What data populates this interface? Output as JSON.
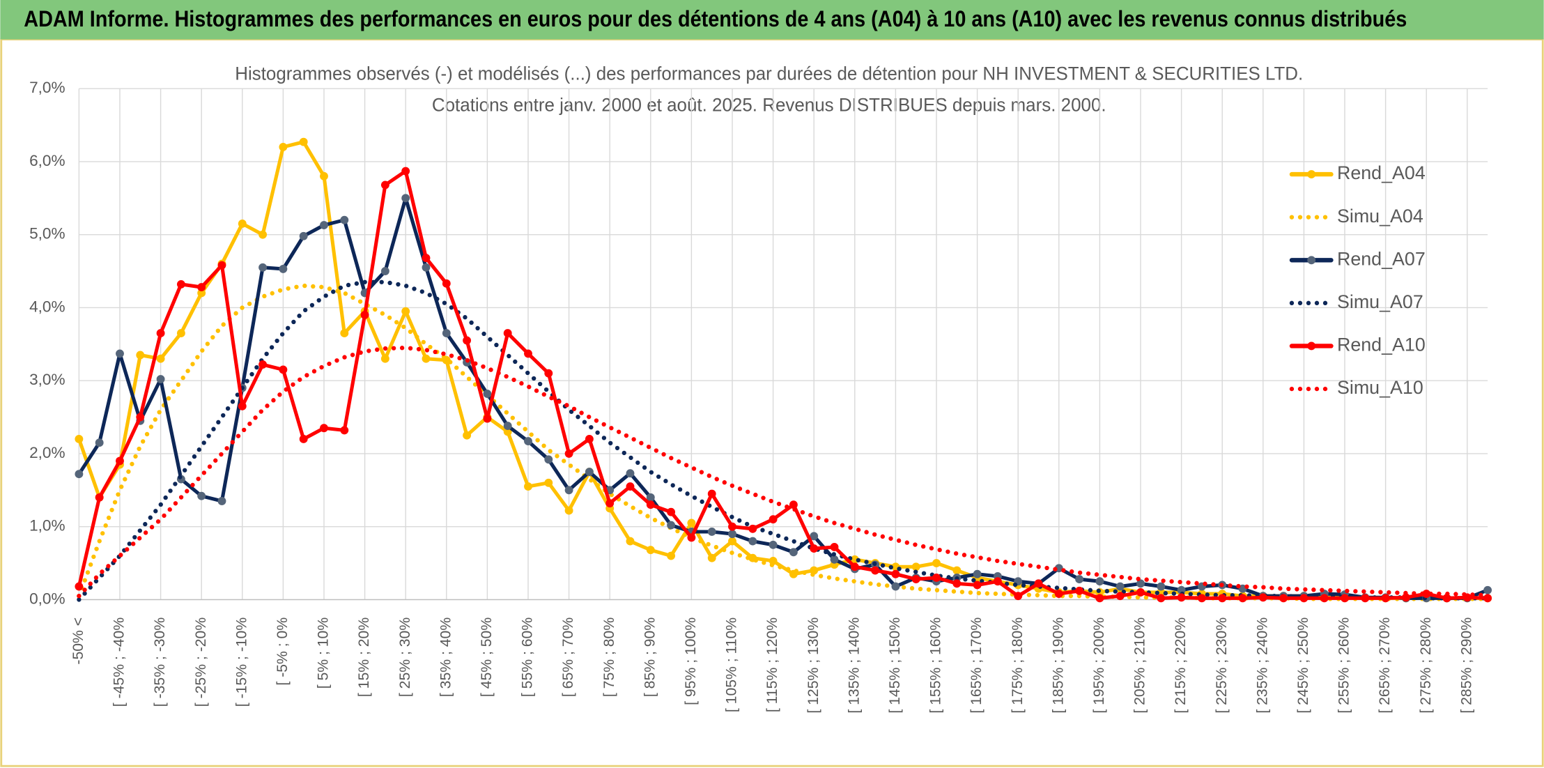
{
  "header": {
    "title": "ADAM Informe. Histogrammes des performances en euros pour des détentions de 4 ans (A04) à 10 ans (A10) avec les revenus connus distribués"
  },
  "chart_data": {
    "type": "line",
    "title": "Histogrammes observés (-) et modélisés (...) des performances par durées de détention pour NH INVESTMENT & SECURITIES LTD.",
    "subtitle": "Cotations entre janv. 2000 et août. 2025. Revenus DISTRIBUES depuis mars. 2000.",
    "categories": [
      "-50% <",
      null,
      "[ -45% ; -40%",
      null,
      "[ -35% ; -30%",
      null,
      "[ -25% ; -20%",
      null,
      "[ -15% ; -10%",
      null,
      "[ -5% ; 0%",
      null,
      "[ 5% ; 10%",
      null,
      "[ 15% ; 20%",
      null,
      "[ 25% ; 30%",
      null,
      "[ 35% ; 40%",
      null,
      "[ 45% ; 50%",
      null,
      "[ 55% ; 60%",
      null,
      "[ 65% ; 70%",
      null,
      "[ 75% ; 80%",
      null,
      "[ 85% ; 90%",
      null,
      "[ 95% ; 100%",
      null,
      "[ 105% ; 110%",
      null,
      "[ 115% ; 120%",
      null,
      "[ 125% ; 130%",
      null,
      "[ 135% ; 140%",
      null,
      "[ 145% ; 150%",
      null,
      "[ 155% ; 160%",
      null,
      "[ 165% ; 170%",
      null,
      "[ 175% ; 180%",
      null,
      "[ 185% ; 190%",
      null,
      "[ 195% ; 200%",
      null,
      "[ 205% ; 210%",
      null,
      "[ 215% ; 220%",
      null,
      "[ 225% ; 230%",
      null,
      "[ 235% ; 240%",
      null,
      "[ 245% ; 250%",
      null,
      "[ 255% ; 260%",
      null,
      "[ 265% ; 270%",
      null,
      "[ 275% ; 280%",
      null,
      "[ 285% ; 290%",
      null
    ],
    "ylim": [
      0,
      7
    ],
    "yticks": [
      {
        "value": 0,
        "label": "0,0%"
      },
      {
        "value": 1,
        "label": "1,0%"
      },
      {
        "value": 2,
        "label": "2,0%"
      },
      {
        "value": 3,
        "label": "3,0%"
      },
      {
        "value": 4,
        "label": "4,0%"
      },
      {
        "value": 5,
        "label": "5,0%"
      },
      {
        "value": 6,
        "label": "6,0%"
      },
      {
        "value": 7,
        "label": "7,0%"
      }
    ],
    "grid": true,
    "legend": "right",
    "series": [
      {
        "name": "Rend_A04",
        "color": "#ffc000",
        "style": "solid",
        "values": [
          2.2,
          1.4,
          1.85,
          3.35,
          3.3,
          3.65,
          4.2,
          4.6,
          5.15,
          5.0,
          6.2,
          6.27,
          5.8,
          3.65,
          3.95,
          3.3,
          3.95,
          3.3,
          3.28,
          2.25,
          2.5,
          2.3,
          1.55,
          1.6,
          1.22,
          1.75,
          1.25,
          0.8,
          0.68,
          0.6,
          1.05,
          0.57,
          0.8,
          0.57,
          0.53,
          0.35,
          0.4,
          0.48,
          0.55,
          0.5,
          0.45,
          0.45,
          0.5,
          0.4,
          0.3,
          0.25,
          0.2,
          0.15,
          0.1,
          0.12,
          0.1,
          0.15,
          0.1,
          0.1,
          0.1,
          0.08,
          0.08,
          0.05,
          0.05,
          0.05,
          0.05,
          0.03,
          0.03,
          0.03,
          0.02,
          0.02,
          0.02,
          0.02,
          0.02,
          0.02
        ]
      },
      {
        "name": "Simu_A04",
        "color": "#ffc000",
        "style": "dotted",
        "values": [
          0.05,
          0.8,
          1.5,
          2.1,
          2.6,
          3.0,
          3.4,
          3.75,
          4.0,
          4.15,
          4.25,
          4.3,
          4.28,
          4.2,
          4.05,
          3.9,
          3.72,
          3.5,
          3.3,
          3.05,
          2.8,
          2.55,
          2.3,
          2.05,
          1.85,
          1.65,
          1.45,
          1.28,
          1.12,
          0.98,
          0.85,
          0.74,
          0.64,
          0.55,
          0.47,
          0.4,
          0.34,
          0.29,
          0.25,
          0.21,
          0.18,
          0.15,
          0.13,
          0.11,
          0.09,
          0.08,
          0.07,
          0.06,
          0.05,
          0.05,
          0.04,
          0.04,
          0.03,
          0.03,
          0.03,
          0.02,
          0.02,
          0.02,
          0.02,
          0.02,
          0.01,
          0.01,
          0.01,
          0.01,
          0.01,
          0.01,
          0.01,
          0.01,
          0.01,
          0.01
        ]
      },
      {
        "name": "Rend_A07",
        "color": "#0d2758",
        "marker_color": "#55657a",
        "style": "solid",
        "values": [
          1.72,
          2.15,
          3.37,
          2.45,
          3.02,
          1.65,
          1.42,
          1.35,
          2.9,
          4.55,
          4.53,
          4.98,
          5.13,
          5.2,
          4.2,
          4.5,
          5.5,
          4.55,
          3.65,
          3.25,
          2.82,
          2.38,
          2.17,
          1.92,
          1.5,
          1.75,
          1.5,
          1.73,
          1.4,
          1.02,
          0.93,
          0.93,
          0.9,
          0.8,
          0.75,
          0.65,
          0.87,
          0.55,
          0.42,
          0.48,
          0.18,
          0.3,
          0.25,
          0.3,
          0.35,
          0.32,
          0.25,
          0.22,
          0.43,
          0.28,
          0.25,
          0.18,
          0.22,
          0.18,
          0.13,
          0.18,
          0.2,
          0.15,
          0.05,
          0.05,
          0.05,
          0.08,
          0.07,
          0.03,
          0.03,
          0.02,
          0.02,
          0.02,
          0.02,
          0.13
        ]
      },
      {
        "name": "Simu_A07",
        "color": "#0d2758",
        "style": "dotted",
        "values": [
          0,
          0.3,
          0.6,
          0.95,
          1.3,
          1.7,
          2.1,
          2.5,
          2.9,
          3.3,
          3.65,
          3.95,
          4.15,
          4.3,
          4.35,
          4.35,
          4.3,
          4.2,
          4.05,
          3.85,
          3.6,
          3.35,
          3.1,
          2.85,
          2.6,
          2.38,
          2.15,
          1.95,
          1.75,
          1.58,
          1.42,
          1.27,
          1.13,
          1.0,
          0.9,
          0.8,
          0.7,
          0.62,
          0.55,
          0.49,
          0.43,
          0.38,
          0.33,
          0.29,
          0.26,
          0.23,
          0.2,
          0.18,
          0.16,
          0.14,
          0.12,
          0.11,
          0.1,
          0.09,
          0.08,
          0.07,
          0.06,
          0.06,
          0.05,
          0.05,
          0.04,
          0.04,
          0.04,
          0.03,
          0.03,
          0.03,
          0.02,
          0.02,
          0.02,
          0.02
        ]
      },
      {
        "name": "Rend_A10",
        "color": "#ff0000",
        "style": "solid",
        "values": [
          0.18,
          1.4,
          1.9,
          2.5,
          3.65,
          4.32,
          4.28,
          4.58,
          2.65,
          3.22,
          3.15,
          2.2,
          2.35,
          2.32,
          3.9,
          5.68,
          5.87,
          4.68,
          4.33,
          3.55,
          2.48,
          3.65,
          3.37,
          3.1,
          2.0,
          2.2,
          1.32,
          1.55,
          1.3,
          1.2,
          0.85,
          1.45,
          1.0,
          0.97,
          1.1,
          1.3,
          0.7,
          0.72,
          0.45,
          0.4,
          0.35,
          0.28,
          0.3,
          0.22,
          0.2,
          0.25,
          0.05,
          0.22,
          0.08,
          0.12,
          0.02,
          0.05,
          0.1,
          0.02,
          0.03,
          0.02,
          0.02,
          0.02,
          0.03,
          0.02,
          0.02,
          0.02,
          0.02,
          0.02,
          0.02,
          0.03,
          0.08,
          0.02,
          0.03,
          0.02
        ]
      },
      {
        "name": "Simu_A10",
        "color": "#ff0000",
        "style": "dotted",
        "values": [
          0.05,
          0.35,
          0.6,
          0.85,
          1.1,
          1.4,
          1.7,
          2.0,
          2.3,
          2.6,
          2.85,
          3.05,
          3.2,
          3.32,
          3.4,
          3.44,
          3.45,
          3.42,
          3.36,
          3.28,
          3.17,
          3.05,
          2.92,
          2.78,
          2.65,
          2.5,
          2.36,
          2.22,
          2.08,
          1.94,
          1.81,
          1.68,
          1.56,
          1.45,
          1.34,
          1.24,
          1.14,
          1.05,
          0.97,
          0.89,
          0.82,
          0.75,
          0.69,
          0.63,
          0.58,
          0.53,
          0.49,
          0.45,
          0.41,
          0.37,
          0.34,
          0.31,
          0.28,
          0.26,
          0.24,
          0.22,
          0.2,
          0.18,
          0.17,
          0.15,
          0.14,
          0.13,
          0.12,
          0.11,
          0.1,
          0.09,
          0.08,
          0.08,
          0.07,
          0.06
        ]
      }
    ]
  }
}
